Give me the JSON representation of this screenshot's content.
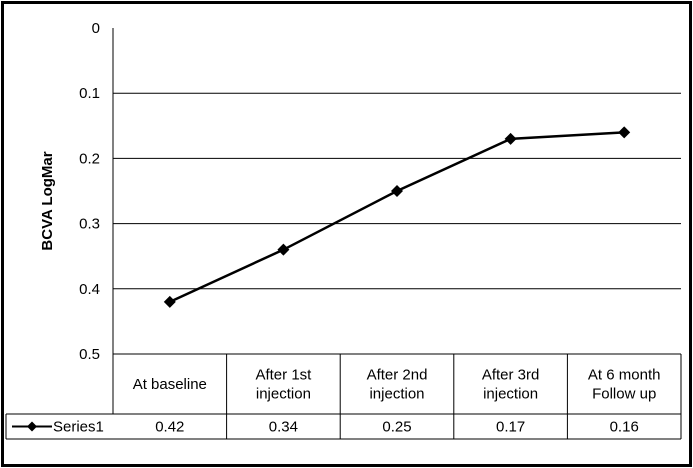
{
  "chart_data": {
    "type": "line",
    "ylabel": "BCVA LogMar",
    "xlabel": "",
    "ylim": [
      0,
      0.5
    ],
    "y_reversed": true,
    "grid": true,
    "y_ticks": [
      "0",
      "0.1",
      "0.2",
      "0.3",
      "0.4",
      "0.5"
    ],
    "categories": [
      [
        "At baseline"
      ],
      [
        "After 1st",
        "injection"
      ],
      [
        "After 2nd",
        "injection"
      ],
      [
        "After 3rd",
        "injection"
      ],
      [
        "At 6 month",
        "Follow up"
      ]
    ],
    "series": [
      {
        "name": "Series1",
        "values": [
          0.42,
          0.34,
          0.25,
          0.17,
          0.16
        ],
        "value_labels": [
          "0.42",
          "0.34",
          "0.25",
          "0.17",
          "0.16"
        ]
      }
    ],
    "legend": "data-table-left",
    "line_color": "#000000"
  }
}
